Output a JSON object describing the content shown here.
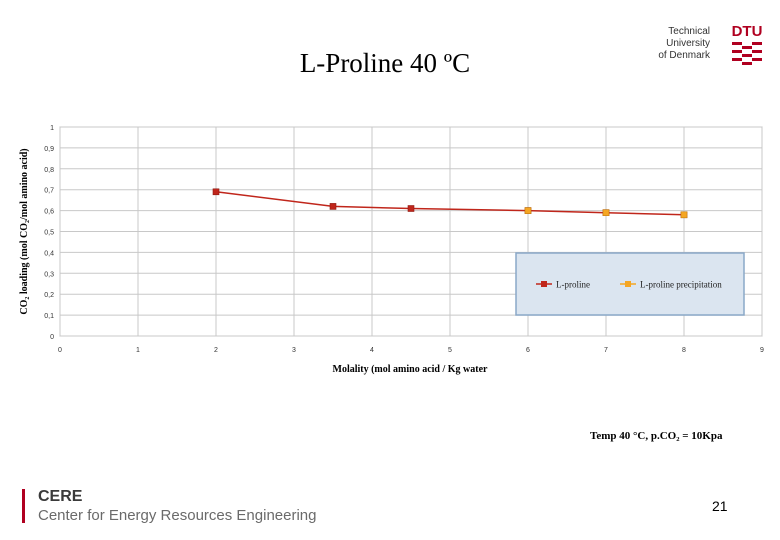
{
  "slide": {
    "title": "L-Proline 40 ºC",
    "conditions": "Temp 40 °C,  p.CO₂ = 10Kpa",
    "page_number": "21"
  },
  "logo": {
    "line1": "Technical University",
    "line2": "of Denmark",
    "mark": "DTU",
    "color": "#b00020"
  },
  "footer": {
    "org": "CERE",
    "org_full": "Center for Energy Resources Engineering",
    "bar_color": "#b00020"
  },
  "chart_data": {
    "type": "line",
    "xlabel": "Molality (mol amino acid / Kg water",
    "ylabel": "CO₂ loading (mol CO₂/mol amino acid)",
    "xlim": [
      0,
      9
    ],
    "ylim": [
      0,
      1
    ],
    "x_ticks": [
      "0",
      "1",
      "2",
      "3",
      "4",
      "5",
      "6",
      "7",
      "8",
      "9"
    ],
    "y_ticks": [
      "0",
      "0,1",
      "0,2",
      "0,3",
      "0,4",
      "0,5",
      "0,6",
      "0,7",
      "0,8",
      "0,9",
      "1"
    ],
    "grid": true,
    "legend_position": "right",
    "series": [
      {
        "name": "L-proline",
        "color": "#c0261b",
        "x": [
          2,
          3.5,
          4.5,
          6,
          7,
          8
        ],
        "y": [
          0.69,
          0.62,
          0.61,
          0.6,
          0.59,
          0.58
        ]
      },
      {
        "name": "L-proline precipitation",
        "color": "#f5a623",
        "x": [
          6,
          7,
          8
        ],
        "y": [
          0.6,
          0.59,
          0.58
        ]
      }
    ]
  }
}
